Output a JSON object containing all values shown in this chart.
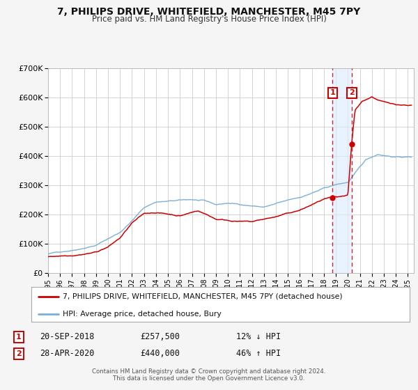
{
  "title": "7, PHILIPS DRIVE, WHITEFIELD, MANCHESTER, M45 7PY",
  "subtitle": "Price paid vs. HM Land Registry's House Price Index (HPI)",
  "legend_line1": "7, PHILIPS DRIVE, WHITEFIELD, MANCHESTER, M45 7PY (detached house)",
  "legend_line2": "HPI: Average price, detached house, Bury",
  "annotation1_label": "1",
  "annotation1_date": "20-SEP-2018",
  "annotation1_price": "£257,500",
  "annotation1_hpi": "12% ↓ HPI",
  "annotation1_year": 2018.72,
  "annotation1_value": 257500,
  "annotation2_label": "2",
  "annotation2_date": "28-APR-2020",
  "annotation2_price": "£440,000",
  "annotation2_hpi": "46% ↑ HPI",
  "annotation2_year": 2020.33,
  "annotation2_value": 440000,
  "hpi_color": "#7ab0d8",
  "price_color": "#cc0000",
  "background_color": "#f5f5f5",
  "plot_bg_color": "#ffffff",
  "grid_color": "#cccccc",
  "ylim": [
    0,
    700000
  ],
  "yticks": [
    0,
    100000,
    200000,
    300000,
    400000,
    500000,
    600000,
    700000
  ],
  "ytick_labels": [
    "£0",
    "£100K",
    "£200K",
    "£300K",
    "£400K",
    "£500K",
    "£600K",
    "£700K"
  ],
  "xlim_start": 1995.0,
  "xlim_end": 2025.5,
  "xticks": [
    1995,
    1996,
    1997,
    1998,
    1999,
    2000,
    2001,
    2002,
    2003,
    2004,
    2005,
    2006,
    2007,
    2008,
    2009,
    2010,
    2011,
    2012,
    2013,
    2014,
    2015,
    2016,
    2017,
    2018,
    2019,
    2020,
    2021,
    2022,
    2023,
    2024,
    2025
  ],
  "footer1": "Contains HM Land Registry data © Crown copyright and database right 2024.",
  "footer2": "This data is licensed under the Open Government Licence v3.0."
}
